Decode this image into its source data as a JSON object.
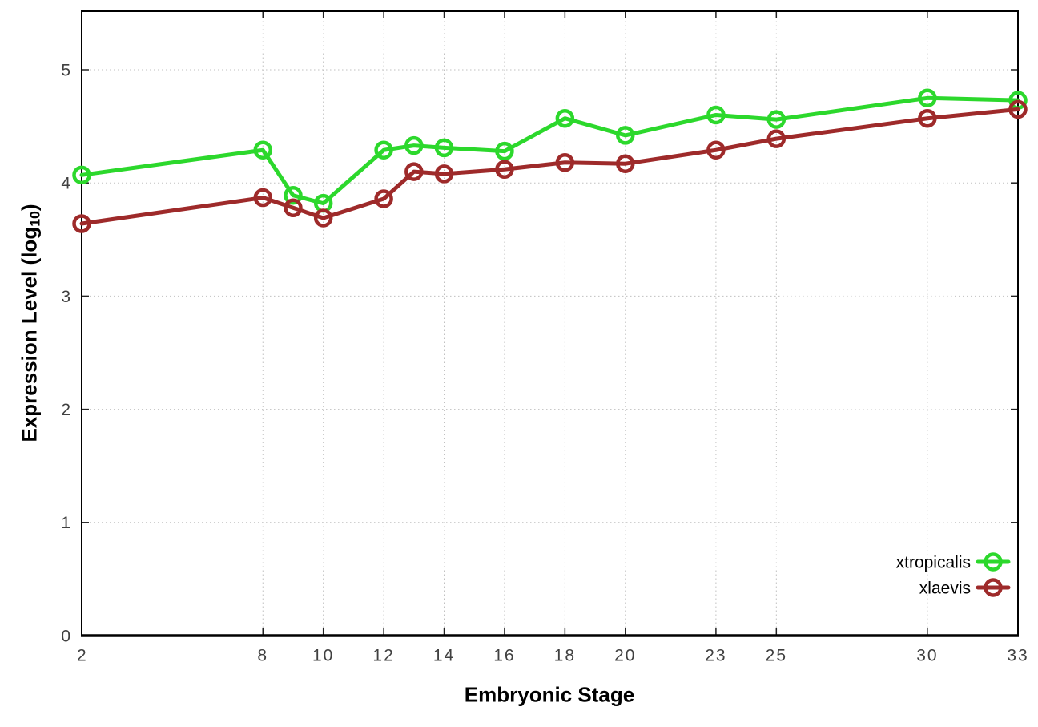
{
  "chart_data": {
    "type": "line",
    "x": [
      2,
      8,
      9,
      10,
      12,
      13,
      14,
      16,
      18,
      20,
      23,
      25,
      30,
      33
    ],
    "series": [
      {
        "name": "xtropicalis",
        "color": "#2cd82c",
        "values": [
          4.07,
          4.29,
          3.89,
          3.82,
          4.29,
          4.33,
          4.31,
          4.28,
          4.57,
          4.42,
          4.6,
          4.56,
          4.75,
          4.73
        ]
      },
      {
        "name": "xlaevis",
        "color": "#9e2a2a",
        "values": [
          3.64,
          3.87,
          3.78,
          3.69,
          3.86,
          4.1,
          4.08,
          4.12,
          4.18,
          4.17,
          4.29,
          4.39,
          4.57,
          4.65
        ]
      }
    ],
    "title": "",
    "xlabel": "Embryonic Stage",
    "ylabel": "Expression Level (log10)",
    "x_tick_labels": [
      "2",
      "8",
      "10",
      "12",
      "14",
      "16",
      "18",
      "20",
      "23",
      "25",
      "30",
      "33"
    ],
    "x_tick_values": [
      2,
      8,
      10,
      12,
      14,
      16,
      18,
      20,
      23,
      25,
      30,
      33
    ],
    "y_tick_labels": [
      "0",
      "1",
      "2",
      "3",
      "4",
      "5"
    ],
    "y_tick_values": [
      0,
      1,
      2,
      3,
      4,
      5
    ],
    "xlim": [
      2,
      33
    ],
    "ylim": [
      0,
      5.52
    ],
    "grid": true,
    "legend_position": "inside-bottom-right",
    "marker": "open-circle"
  },
  "labels": {
    "x": "Embryonic Stage",
    "y_prefix": "Expression Level (log",
    "y_sub": "10",
    "y_suffix": ")"
  },
  "legend": {
    "entries": [
      "xtropicalis",
      "xlaevis"
    ]
  },
  "colors": {
    "background": "#ffffff",
    "axis": "#000000",
    "grid": "#c0c0c0",
    "tick_text": "#404040",
    "xtropicalis": "#2cd82c",
    "xlaevis": "#9e2a2a"
  }
}
